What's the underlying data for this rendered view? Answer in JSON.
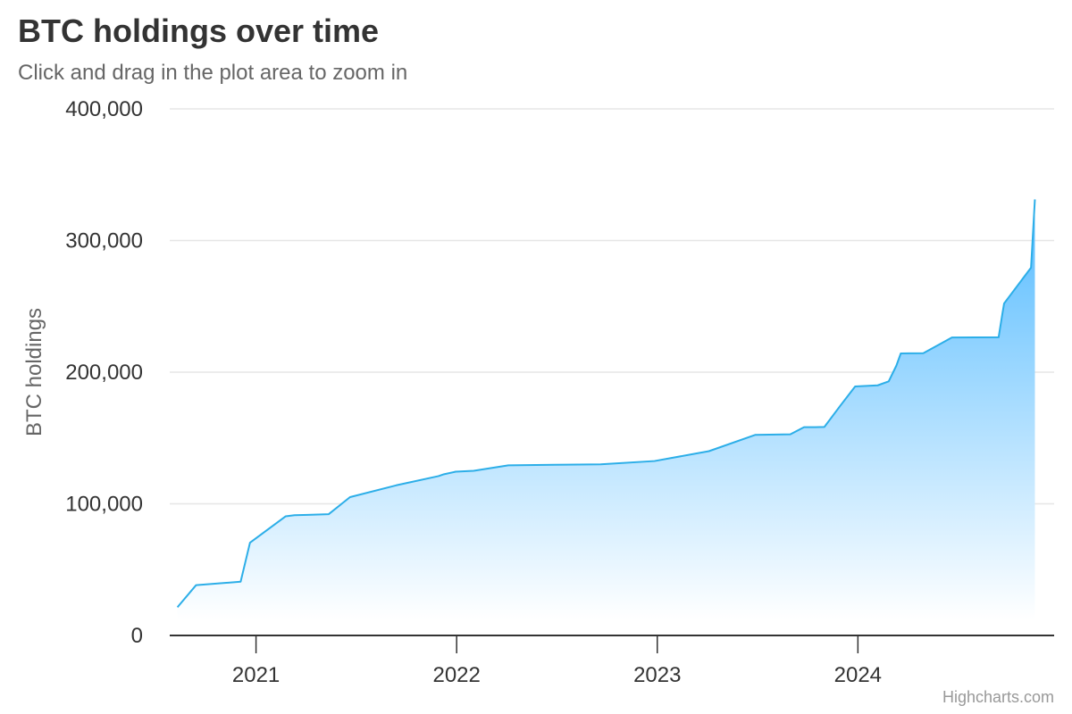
{
  "title": "BTC holdings over time",
  "subtitle": "Click and drag in the plot area to zoom in",
  "credit": "Highcharts.com",
  "colors": {
    "line": "#2caee8",
    "fill_top": "#55bbff",
    "fill_bottom": "#ffffff",
    "grid": "#e6e6e6",
    "axis": "#333333",
    "label": "#333333"
  },
  "chart_data": {
    "type": "area",
    "title": "BTC holdings over time",
    "subtitle": "Click and drag in the plot area to zoom in",
    "xlabel": "",
    "ylabel": "BTC holdings",
    "ylim": [
      0,
      400000
    ],
    "xlim": [
      "2020-07-28",
      "2024-12-23"
    ],
    "y_ticks": [
      0,
      100000,
      200000,
      300000,
      400000
    ],
    "y_tick_labels": [
      "0",
      "100,000",
      "200,000",
      "300,000",
      "400,000"
    ],
    "x_ticks": [
      "2021-01-01",
      "2022-01-01",
      "2023-01-01",
      "2024-01-01"
    ],
    "x_tick_labels": [
      "2021",
      "2022",
      "2023",
      "2024"
    ],
    "grid": true,
    "legend": "none",
    "series": [
      {
        "points": [
          [
            "2020-08-11",
            21454
          ],
          [
            "2020-09-14",
            38250
          ],
          [
            "2020-12-04",
            40824
          ],
          [
            "2020-12-21",
            70470
          ],
          [
            "2021-02-24",
            90531
          ],
          [
            "2021-03-12",
            91326
          ],
          [
            "2021-04-05",
            91579
          ],
          [
            "2021-05-13",
            92079
          ],
          [
            "2021-06-21",
            105085
          ],
          [
            "2021-09-13",
            114042
          ],
          [
            "2021-11-29",
            121044
          ],
          [
            "2021-12-09",
            122478
          ],
          [
            "2021-12-30",
            124391
          ],
          [
            "2022-02-01",
            125051
          ],
          [
            "2022-04-05",
            129218
          ],
          [
            "2022-06-28",
            129699
          ],
          [
            "2022-09-20",
            130000
          ],
          [
            "2022-12-27",
            132500
          ],
          [
            "2023-04-05",
            140000
          ],
          [
            "2023-06-28",
            152333
          ],
          [
            "2023-08-31",
            152800
          ],
          [
            "2023-09-25",
            158245
          ],
          [
            "2023-10-15",
            158245
          ],
          [
            "2023-11-01",
            158400
          ],
          [
            "2023-11-30",
            174530
          ],
          [
            "2023-12-27",
            189150
          ],
          [
            "2024-02-06",
            190000
          ],
          [
            "2024-02-26",
            193000
          ],
          [
            "2024-03-11",
            205000
          ],
          [
            "2024-03-19",
            214246
          ],
          [
            "2024-04-29",
            214400
          ],
          [
            "2024-06-20",
            226331
          ],
          [
            "2024-09-13",
            226500
          ],
          [
            "2024-09-20",
            244800
          ],
          [
            "2024-09-23",
            252220
          ],
          [
            "2024-11-11",
            279420
          ],
          [
            "2024-11-18",
            331200
          ]
        ]
      }
    ]
  }
}
